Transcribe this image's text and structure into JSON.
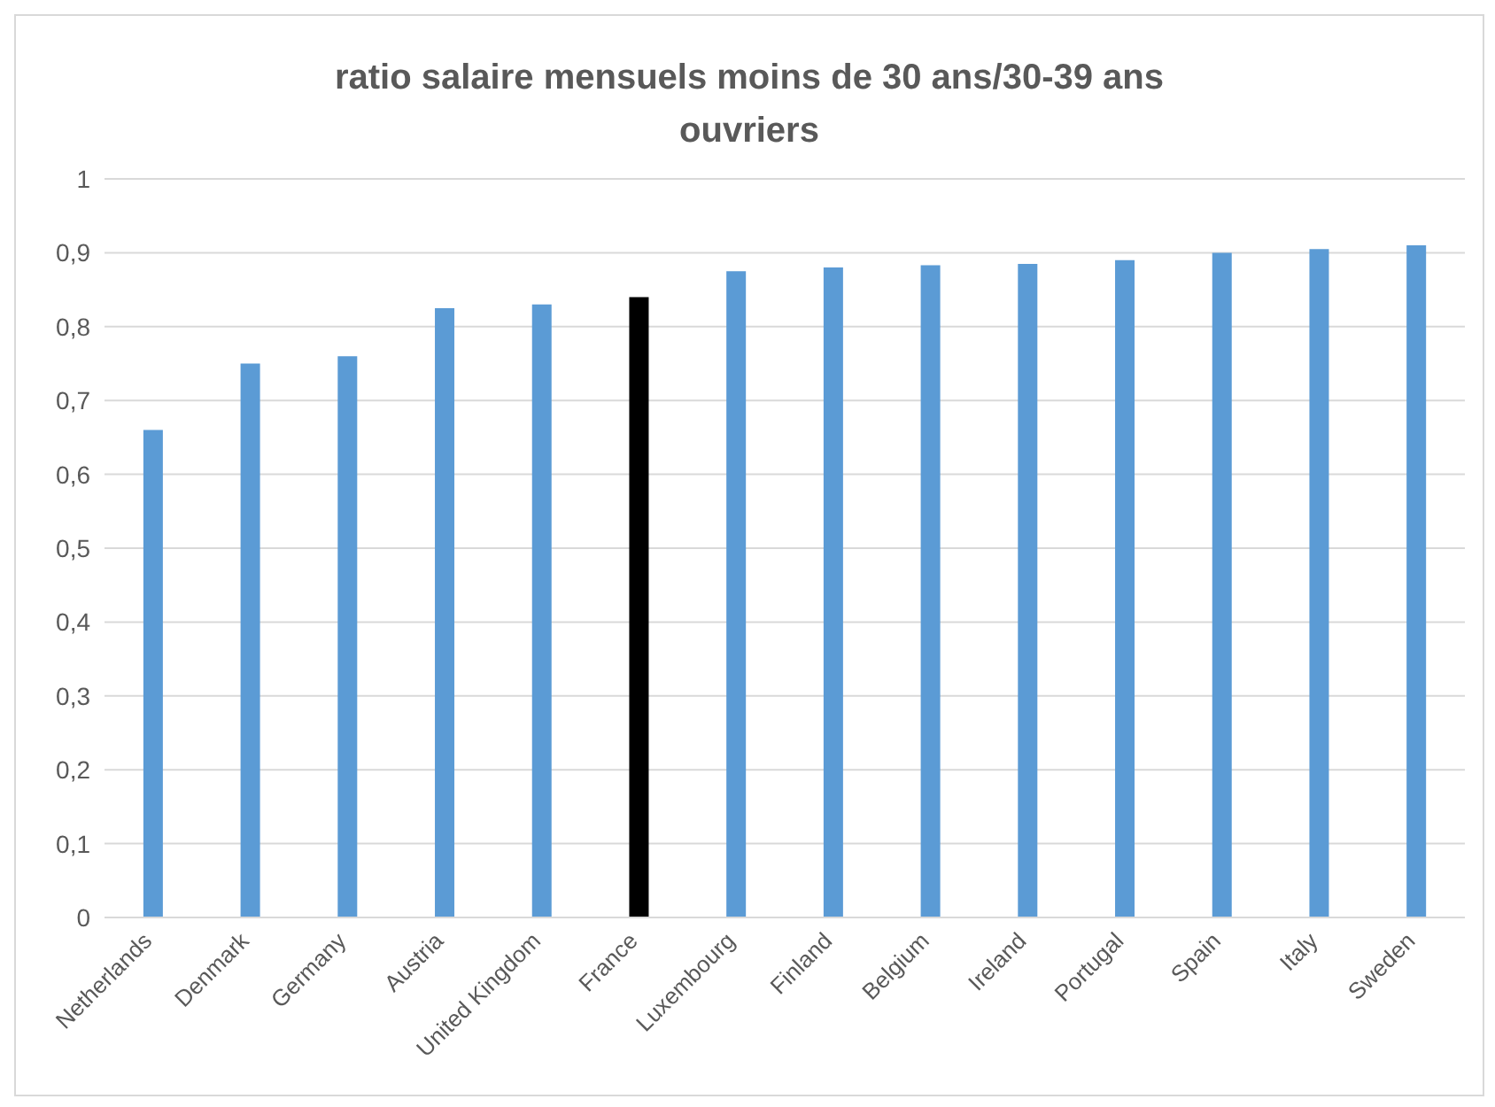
{
  "chart_data": {
    "type": "bar",
    "title": "ratio salaire mensuels moins de 30 ans/30-39 ans ouvriers",
    "categories": [
      "Netherlands",
      "Denmark",
      "Germany",
      "Austria",
      "United Kingdom",
      "France",
      "Luxembourg",
      "Finland",
      "Belgium",
      "Ireland",
      "Portugal",
      "Spain",
      "Italy",
      "Sweden"
    ],
    "values": [
      0.66,
      0.75,
      0.76,
      0.825,
      0.83,
      0.84,
      0.875,
      0.88,
      0.883,
      0.885,
      0.89,
      0.9,
      0.905,
      0.91
    ],
    "colors": [
      "#5b9bd5",
      "#5b9bd5",
      "#5b9bd5",
      "#5b9bd5",
      "#5b9bd5",
      "#000000",
      "#5b9bd5",
      "#5b9bd5",
      "#5b9bd5",
      "#5b9bd5",
      "#5b9bd5",
      "#5b9bd5",
      "#5b9bd5",
      "#5b9bd5"
    ],
    "ylim": [
      0,
      1
    ],
    "yticks": [
      0,
      {
        "value": 0.1,
        "label": "0,1"
      },
      {
        "value": 0.2,
        "label": "0,2"
      },
      {
        "value": 0.3,
        "label": "0,3"
      },
      {
        "value": 0.4,
        "label": "0,4"
      },
      {
        "value": 0.5,
        "label": "0,5"
      },
      {
        "value": 0.6,
        "label": "0,6"
      },
      {
        "value": 0.7,
        "label": "0,7"
      },
      {
        "value": 0.8,
        "label": "0,8"
      },
      {
        "value": 0.9,
        "label": "0,9"
      },
      1
    ],
    "grid": "y",
    "legend": false
  }
}
